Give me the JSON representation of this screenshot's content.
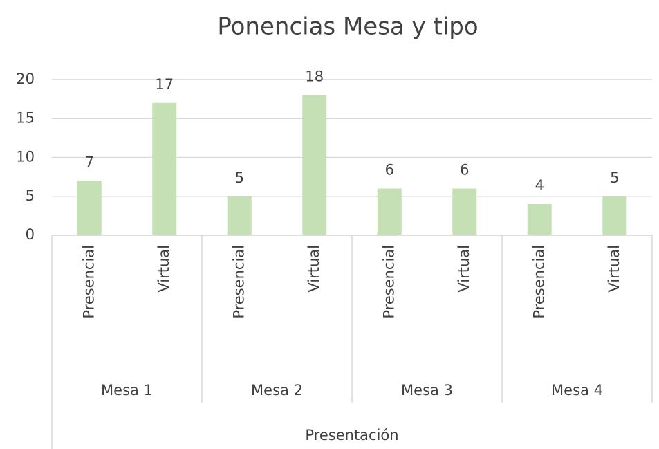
{
  "chart_data": {
    "type": "bar",
    "title": "Ponencias Mesa y tipo",
    "x_label": "Presentación",
    "categories": [
      "Presencial",
      "Virtual",
      "Presencial",
      "Virtual",
      "Presencial",
      "Virtual",
      "Presencial",
      "Virtual"
    ],
    "groups": [
      "Mesa 1",
      "Mesa 2",
      "Mesa 3",
      "Mesa 4"
    ],
    "values": [
      7,
      17,
      5,
      18,
      6,
      6,
      4,
      5
    ],
    "color": "#c5e0b4",
    "ylim": [
      0,
      20
    ],
    "yticks": [
      0,
      5,
      10,
      15,
      20
    ],
    "grid": true
  }
}
